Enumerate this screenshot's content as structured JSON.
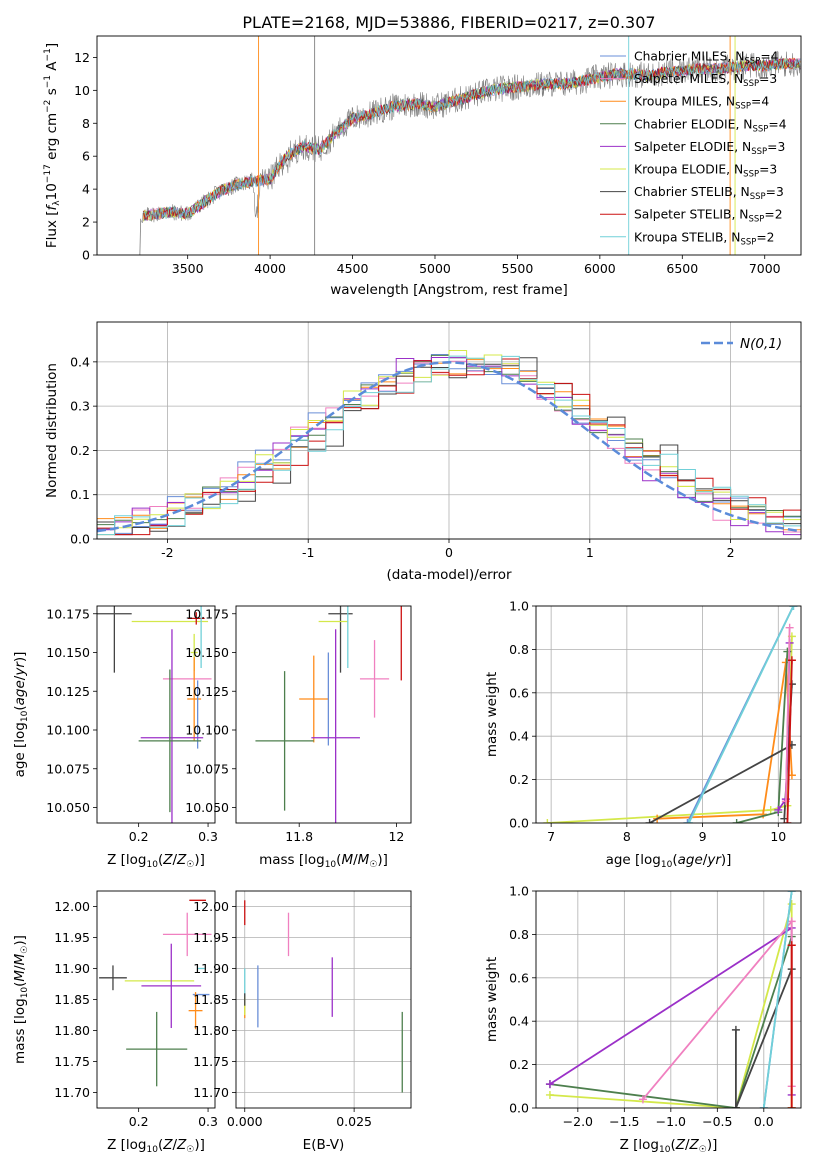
{
  "figure_title": "PLATE=2168, MJD=53886, FIBERID=0217, z=0.307",
  "colors": {
    "chabrier_miles": "#6a8fd8",
    "salpeter_miles": "#f080c0",
    "kroupa_miles": "#ff8c1a",
    "chabrier_elodie": "#4d7f4d",
    "salpeter_elodie": "#9b30c8",
    "kroupa_elodie": "#d4e84a",
    "chabrier_stelib": "#444444",
    "salpeter_stelib": "#cc1111",
    "kroupa_stelib": "#70d0d8",
    "gaussian": "#5b8bd9",
    "data_spectrum": "#808080"
  },
  "chart_data": [
    {
      "id": "spectrum",
      "type": "line",
      "title": "PLATE=2168, MJD=53886, FIBERID=0217, z=0.307",
      "xlabel": "wavelength [Angstrom, rest frame]",
      "ylabel": "Flux [f_λ 10^-17 erg cm^-2 s^-1 A^-1]",
      "xlim": [
        2950,
        7220
      ],
      "ylim": [
        0,
        13.3
      ],
      "xticks": [
        3500,
        4000,
        4500,
        5000,
        5500,
        6000,
        6500,
        7000
      ],
      "yticks": [
        0,
        2,
        4,
        6,
        8,
        10,
        12
      ],
      "grid": false,
      "legend_position": "right",
      "continuum": {
        "x": [
          3200,
          3300,
          3400,
          3500,
          3600,
          3700,
          3800,
          3900,
          4000,
          4100,
          4200,
          4300,
          4400,
          4500,
          4600,
          4700,
          4800,
          4900,
          5000,
          5100,
          5200,
          5300,
          5400,
          5500,
          5600,
          5700,
          5800,
          5900,
          6000,
          6100,
          6200,
          6300,
          6400,
          6500,
          6600,
          6700,
          6800,
          6900,
          7000,
          7100,
          7200
        ],
        "y": [
          2.3,
          2.5,
          2.6,
          2.5,
          3.2,
          3.9,
          4.3,
          4.5,
          4.6,
          6.0,
          6.6,
          6.4,
          7.4,
          8.3,
          8.5,
          8.9,
          9.1,
          9.2,
          9.0,
          9.3,
          9.6,
          9.9,
          10.1,
          10.2,
          10.3,
          10.4,
          10.4,
          10.6,
          10.8,
          11.0,
          11.0,
          10.9,
          11.1,
          11.2,
          11.3,
          11.3,
          11.4,
          11.5,
          11.5,
          11.6,
          11.6
        ]
      },
      "series": [
        {
          "name": "Chabrier MILES, N_SSP=4",
          "label_main": "Chabrier MILES, N",
          "label_sub": "SSP",
          "label_tail": "=4",
          "color": "#6a8fd8"
        },
        {
          "name": "Salpeter MILES, N_SSP=3",
          "label_main": "Salpeter MILES, N",
          "label_sub": "SSP",
          "label_tail": "=3",
          "color": "#f080c0"
        },
        {
          "name": "Kroupa MILES, N_SSP=4",
          "label_main": "Kroupa MILES, N",
          "label_sub": "SSP",
          "label_tail": "=4",
          "color": "#ff8c1a"
        },
        {
          "name": "Chabrier ELODIE, N_SSP=4",
          "label_main": "Chabrier ELODIE, N",
          "label_sub": "SSP",
          "label_tail": "=4",
          "color": "#4d7f4d"
        },
        {
          "name": "Salpeter ELODIE, N_SSP=3",
          "label_main": "Salpeter ELODIE, N",
          "label_sub": "SSP",
          "label_tail": "=3",
          "color": "#9b30c8"
        },
        {
          "name": "Kroupa ELODIE, N_SSP=3",
          "label_main": "Kroupa ELODIE, N",
          "label_sub": "SSP",
          "label_tail": "=3",
          "color": "#d4e84a"
        },
        {
          "name": "Chabrier STELIB, N_SSP=3",
          "label_main": "Chabrier STELIB, N",
          "label_sub": "SSP",
          "label_tail": "=3",
          "color": "#444444"
        },
        {
          "name": "Salpeter STELIB, N_SSP=2",
          "label_main": "Salpeter STELIB, N",
          "label_sub": "SSP",
          "label_tail": "=2",
          "color": "#cc1111"
        },
        {
          "name": "Kroupa STELIB, N_SSP=2",
          "label_main": "Kroupa STELIB, N",
          "label_sub": "SSP",
          "label_tail": "=2",
          "color": "#70d0d8"
        }
      ]
    },
    {
      "id": "residuals",
      "type": "line",
      "xlabel": "(data-model)/error",
      "ylabel": "Normed distribution",
      "xlim": [
        -2.5,
        2.5
      ],
      "ylim": [
        0,
        0.49
      ],
      "xticks": [
        -2,
        -1,
        0,
        1,
        2
      ],
      "yticks": [
        0.0,
        0.1,
        0.2,
        0.3,
        0.4
      ],
      "grid": true,
      "legend": "N(0,1)",
      "legend_position": "top-right",
      "bins_start": -2.5,
      "bin_width": 0.125,
      "gaussian": {
        "mean": 0,
        "sigma": 1
      }
    },
    {
      "id": "age_vs_Z",
      "type": "scatter",
      "xlabel": "Z [log10(Z/Z☉)]",
      "ylabel": "age [log10(age/yr)]",
      "xlim": [
        0.14,
        0.31
      ],
      "ylim": [
        10.04,
        10.18
      ],
      "xticks": [
        0.2,
        0.3
      ],
      "yticks": [
        10.05,
        10.075,
        10.1,
        10.125,
        10.15,
        10.175
      ],
      "ytick_labels": [
        "10.050",
        "10.075",
        "10.100",
        "10.125",
        "10.150",
        "10.175"
      ],
      "grid": false,
      "points": [
        {
          "x": 0.165,
          "y": 10.175,
          "xerr": 0.025,
          "yerr": 0.038,
          "color": "#444444"
        },
        {
          "x": 0.245,
          "y": 10.17,
          "xerr": 0.055,
          "yerr": 0.0,
          "color": "#d4e84a"
        },
        {
          "x": 0.283,
          "y": 10.172,
          "xerr": 0.012,
          "yerr": 0.004,
          "color": "#cc1111"
        },
        {
          "x": 0.29,
          "y": 10.16,
          "xerr": 0.0,
          "yerr": 0.02,
          "color": "#70d0d8"
        },
        {
          "x": 0.28,
          "y": 10.15,
          "xerr": 0.005,
          "yerr": 0.012,
          "color": "#d4e84a"
        },
        {
          "x": 0.27,
          "y": 10.133,
          "xerr": 0.035,
          "yerr": 0.0,
          "color": "#f080c0"
        },
        {
          "x": 0.28,
          "y": 10.12,
          "xerr": 0.01,
          "yerr": 0.027,
          "color": "#ff8c1a"
        },
        {
          "x": 0.285,
          "y": 10.11,
          "xerr": 0.0,
          "yerr": 0.022,
          "color": "#6a8fd8"
        },
        {
          "x": 0.248,
          "y": 10.095,
          "xerr": 0.045,
          "yerr": 0.07,
          "color": "#9b30c8"
        },
        {
          "x": 0.245,
          "y": 10.093,
          "xerr": 0.045,
          "yerr": 0.046,
          "color": "#4d7f4d"
        }
      ]
    },
    {
      "id": "age_vs_mass",
      "type": "scatter",
      "xlabel": "mass [log10(M/M☉)]",
      "ylabel": "",
      "xlim": [
        11.67,
        12.03
      ],
      "ylim": [
        10.04,
        10.18
      ],
      "xticks": [
        11.8,
        12.0
      ],
      "yticks": [
        10.05,
        10.075,
        10.1,
        10.125,
        10.15,
        10.175
      ],
      "ytick_labels": [
        "10.050",
        "10.075",
        "10.100",
        "10.125",
        "10.150",
        "10.175"
      ],
      "grid": false,
      "points": [
        {
          "x": 11.885,
          "y": 10.175,
          "xerr": 0.025,
          "yerr": 0.038,
          "color": "#444444"
        },
        {
          "x": 11.87,
          "y": 10.17,
          "xerr": 0.03,
          "yerr": 0.0,
          "color": "#d4e84a"
        },
        {
          "x": 12.01,
          "y": 10.172,
          "xerr": 0.0,
          "yerr": 0.04,
          "color": "#cc1111"
        },
        {
          "x": 11.9,
          "y": 10.16,
          "xerr": 0.0,
          "yerr": 0.02,
          "color": "#70d0d8"
        },
        {
          "x": 11.955,
          "y": 10.133,
          "xerr": 0.03,
          "yerr": 0.025,
          "color": "#f080c0"
        },
        {
          "x": 11.83,
          "y": 10.12,
          "xerr": 0.03,
          "yerr": 0.028,
          "color": "#ff8c1a"
        },
        {
          "x": 11.86,
          "y": 10.12,
          "xerr": 0.0,
          "yerr": 0.03,
          "color": "#6a8fd8"
        },
        {
          "x": 11.875,
          "y": 10.095,
          "xerr": 0.05,
          "yerr": 0.07,
          "color": "#9b30c8"
        },
        {
          "x": 11.77,
          "y": 10.093,
          "xerr": 0.06,
          "yerr": 0.045,
          "color": "#4d7f4d"
        }
      ]
    },
    {
      "id": "massweight_vs_age",
      "type": "line",
      "xlabel": "age [log10(age/yr)]",
      "ylabel": "mass weight",
      "xlim": [
        6.8,
        10.3
      ],
      "ylim": [
        0,
        1.0
      ],
      "xticks": [
        7,
        8,
        9,
        10
      ],
      "yticks": [
        0.0,
        0.2,
        0.4,
        0.6,
        0.8,
        1.0
      ],
      "grid": true,
      "series": [
        {
          "color": "#d4e84a",
          "x": [
            6.95,
            9.9,
            10.12,
            10.18
          ],
          "y": [
            0.0,
            0.06,
            0.08,
            0.86
          ]
        },
        {
          "color": "#ff8c1a",
          "x": [
            8.4,
            9.8,
            10.1,
            10.18
          ],
          "y": [
            0.02,
            0.04,
            0.74,
            0.22
          ]
        },
        {
          "color": "#4d7f4d",
          "x": [
            9.45,
            10.0,
            10.12
          ],
          "y": [
            0.0,
            0.05,
            0.79
          ]
        },
        {
          "color": "#444444",
          "x": [
            8.3,
            10.18
          ],
          "y": [
            0.0,
            0.36
          ]
        },
        {
          "color": "#444444",
          "x": [
            10.08,
            10.18
          ],
          "y": [
            0.02,
            0.64
          ]
        },
        {
          "color": "#9b30c8",
          "x": [
            10.0,
            10.1,
            10.15
          ],
          "y": [
            0.06,
            0.11,
            0.83
          ]
        },
        {
          "color": "#f080c0",
          "x": [
            10.1,
            10.15
          ],
          "y": [
            0.1,
            0.9
          ]
        },
        {
          "color": "#6a8fd8",
          "x": [
            8.8,
            10.2
          ],
          "y": [
            0.0,
            1.0
          ]
        },
        {
          "color": "#70d0d8",
          "x": [
            8.82,
            10.2
          ],
          "y": [
            0.0,
            1.0
          ]
        },
        {
          "color": "#cc1111",
          "x": [
            10.12,
            10.18
          ],
          "y": [
            0.0,
            0.75
          ]
        }
      ]
    },
    {
      "id": "mass_vs_Z",
      "type": "scatter",
      "xlabel": "Z [log10(Z/Z☉)]",
      "ylabel": "mass [log10(M/M☉)]",
      "xlim": [
        0.14,
        0.31
      ],
      "ylim": [
        11.675,
        12.025
      ],
      "xticks": [
        0.2,
        0.3
      ],
      "yticks": [
        11.7,
        11.75,
        11.8,
        11.85,
        11.9,
        11.95,
        12.0
      ],
      "ytick_labels": [
        "11.70",
        "11.75",
        "11.80",
        "11.85",
        "11.90",
        "11.95",
        "12.00"
      ],
      "grid": false,
      "points": [
        {
          "x": 0.163,
          "y": 11.885,
          "xerr": 0.02,
          "yerr": 0.02,
          "color": "#444444"
        },
        {
          "x": 0.285,
          "y": 12.01,
          "xerr": 0.012,
          "yerr": 0.0,
          "color": "#cc1111"
        },
        {
          "x": 0.27,
          "y": 11.955,
          "xerr": 0.035,
          "yerr": 0.035,
          "color": "#f080c0"
        },
        {
          "x": 0.29,
          "y": 11.9,
          "xerr": 0.005,
          "yerr": 0.0,
          "color": "#70d0d8"
        },
        {
          "x": 0.23,
          "y": 11.88,
          "xerr": 0.05,
          "yerr": 0.0,
          "color": "#d4e84a"
        },
        {
          "x": 0.247,
          "y": 11.872,
          "xerr": 0.043,
          "yerr": 0.068,
          "color": "#9b30c8"
        },
        {
          "x": 0.29,
          "y": 11.858,
          "xerr": 0.012,
          "yerr": 0.0,
          "color": "#6a8fd8"
        },
        {
          "x": 0.282,
          "y": 11.832,
          "xerr": 0.01,
          "yerr": 0.03,
          "color": "#ff8c1a"
        },
        {
          "x": 0.226,
          "y": 11.77,
          "xerr": 0.044,
          "yerr": 0.06,
          "color": "#4d7f4d"
        }
      ]
    },
    {
      "id": "mass_vs_ebv",
      "type": "scatter",
      "xlabel": "E(B-V)",
      "ylabel": "",
      "xlim": [
        -0.002,
        0.038
      ],
      "ylim": [
        11.675,
        12.025
      ],
      "xticks": [
        0.0,
        0.025
      ],
      "xtick_labels": [
        "0.000",
        "0.025"
      ],
      "yticks": [
        11.7,
        11.75,
        11.8,
        11.85,
        11.9,
        11.95,
        12.0
      ],
      "ytick_labels": [
        "11.70",
        "11.75",
        "11.80",
        "11.85",
        "11.90",
        "11.95",
        "12.00"
      ],
      "grid": true,
      "points": [
        {
          "x": 0.0,
          "y": 11.99,
          "xerr": 0,
          "yerr": 0.02,
          "color": "#cc1111"
        },
        {
          "x": 0.01,
          "y": 11.955,
          "xerr": 0,
          "yerr": 0.035,
          "color": "#f080c0"
        },
        {
          "x": 0.02,
          "y": 11.87,
          "xerr": 0,
          "yerr": 0.048,
          "color": "#9b30c8"
        },
        {
          "x": 0.0,
          "y": 11.875,
          "xerr": 0,
          "yerr": 0.025,
          "color": "#70d0d8"
        },
        {
          "x": 0.003,
          "y": 11.855,
          "xerr": 0,
          "yerr": 0.05,
          "color": "#6a8fd8"
        },
        {
          "x": 0.0,
          "y": 11.83,
          "xerr": 0,
          "yerr": 0.01,
          "color": "#ff8c1a"
        },
        {
          "x": 0.0,
          "y": 11.84,
          "xerr": 0,
          "yerr": 0.015,
          "color": "#d4e84a"
        },
        {
          "x": 0.0,
          "y": 11.85,
          "xerr": 0,
          "yerr": 0.01,
          "color": "#444444"
        },
        {
          "x": 0.036,
          "y": 11.765,
          "xerr": 0,
          "yerr": 0.065,
          "color": "#4d7f4d"
        }
      ]
    },
    {
      "id": "massweight_vs_Z",
      "type": "line",
      "xlabel": "Z [log10(Z/Z☉)]",
      "ylabel": "mass weight",
      "xlim": [
        -2.45,
        0.4
      ],
      "ylim": [
        0,
        1.0
      ],
      "xticks": [
        -2.0,
        -1.5,
        -1.0,
        -0.5,
        0.0
      ],
      "xtick_labels": [
        "−2.0",
        "−1.5",
        "−1.0",
        "−0.5",
        "0.0"
      ],
      "yticks": [
        0.0,
        0.2,
        0.4,
        0.6,
        0.8,
        1.0
      ],
      "grid": true,
      "series": [
        {
          "color": "#d4e84a",
          "x": [
            -2.3,
            -0.3,
            0.3,
            0.3
          ],
          "y": [
            0.06,
            0.0,
            0.94,
            0.0
          ]
        },
        {
          "color": "#4d7f4d",
          "x": [
            -2.3,
            -0.3,
            0.3
          ],
          "y": [
            0.11,
            0.0,
            0.79
          ]
        },
        {
          "color": "#9b30c8",
          "x": [
            -2.3,
            0.3,
            0.3
          ],
          "y": [
            0.11,
            0.83,
            0.06
          ]
        },
        {
          "color": "#f080c0",
          "x": [
            -1.3,
            0.3,
            0.3
          ],
          "y": [
            0.04,
            0.86,
            0.1
          ]
        },
        {
          "color": "#444444",
          "x": [
            -0.3,
            -0.3
          ],
          "y": [
            0.0,
            0.36
          ]
        },
        {
          "color": "#444444",
          "x": [
            -0.3,
            0.3
          ],
          "y": [
            0.0,
            0.64
          ]
        },
        {
          "color": "#6a8fd8",
          "x": [
            0.0,
            0.3
          ],
          "y": [
            0.0,
            1.0
          ]
        },
        {
          "color": "#70d0d8",
          "x": [
            0.0,
            0.3
          ],
          "y": [
            0.0,
            1.0
          ]
        },
        {
          "color": "#ff8c1a",
          "x": [
            0.3,
            0.3
          ],
          "y": [
            0.0,
            0.75
          ]
        },
        {
          "color": "#cc1111",
          "x": [
            0.3,
            0.3
          ],
          "y": [
            0.0,
            0.75
          ]
        }
      ]
    }
  ]
}
